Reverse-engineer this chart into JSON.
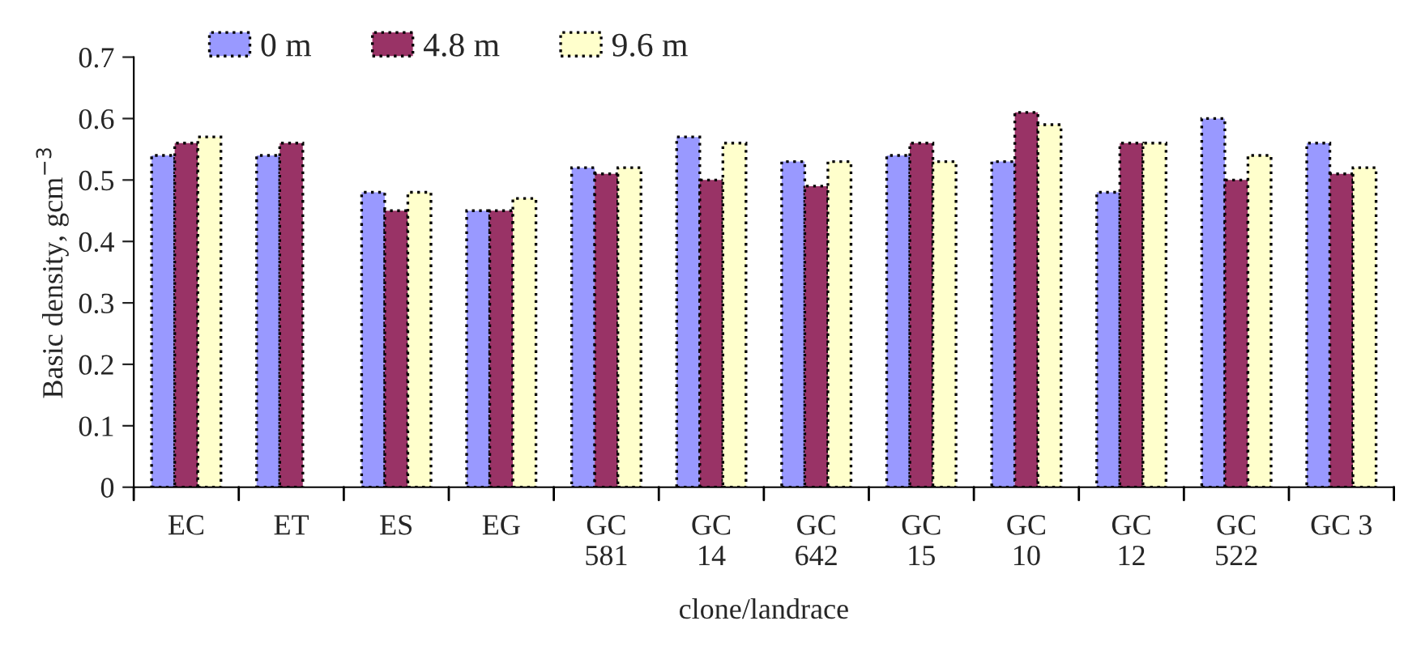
{
  "chart_data": {
    "type": "bar",
    "xlabel": "clone/landrace",
    "ylabel": "Basic density, gcm$^{−3}$",
    "categories": [
      "EC",
      "ET",
      "ES",
      "EG",
      "GC\n581",
      "GC\n14",
      "GC\n642",
      "GC\n15",
      "GC\n10",
      "GC\n12",
      "GC\n522",
      "GC 3"
    ],
    "series": [
      {
        "name": "0 m",
        "color": "#9999ff",
        "values": [
          0.54,
          0.54,
          0.48,
          0.45,
          0.52,
          0.57,
          0.53,
          0.54,
          0.53,
          0.48,
          0.6,
          0.56
        ]
      },
      {
        "name": "4.8 m",
        "color": "#993366",
        "values": [
          0.56,
          0.56,
          0.45,
          0.45,
          0.51,
          0.5,
          0.49,
          0.56,
          0.61,
          0.56,
          0.5,
          0.51
        ]
      },
      {
        "name": "9.6 m",
        "color": "#ffffcc",
        "values": [
          0.57,
          null,
          0.48,
          0.47,
          0.52,
          0.56,
          0.53,
          0.53,
          0.59,
          0.56,
          0.54,
          0.52
        ]
      }
    ],
    "ylim": [
      0,
      0.7
    ],
    "yticks": [
      0,
      0.1,
      0.2,
      0.3,
      0.4,
      0.5,
      0.6,
      0.7
    ],
    "legend": "top",
    "grid": false
  }
}
